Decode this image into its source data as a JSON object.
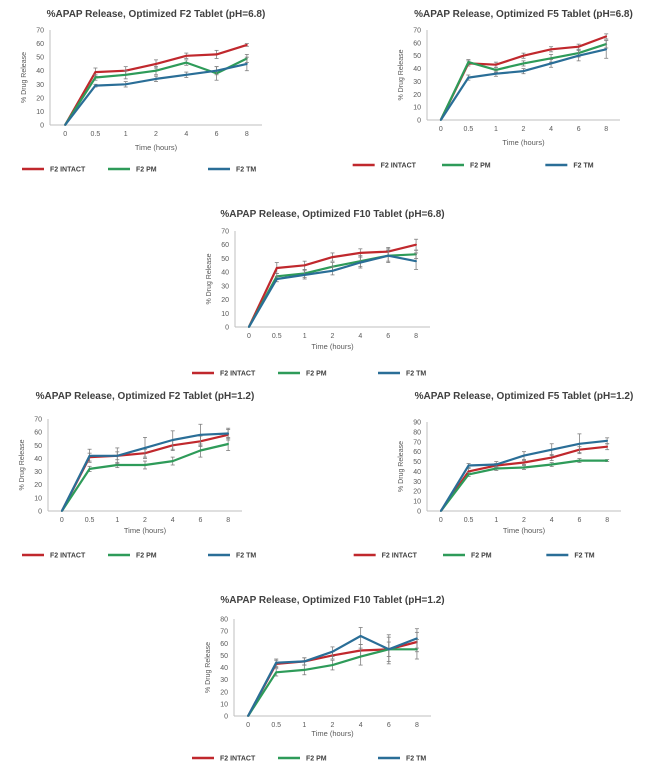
{
  "colors": {
    "intact": "#c0282d",
    "pm": "#2e9b59",
    "tm": "#2a6e97"
  },
  "chart_data": [
    {
      "type": "line",
      "title": "%APAP Release, Optimized F2 Tablet (pH=6.8)",
      "xlabel": "Time (hours)",
      "ylabel": "% Drug Release",
      "x": [
        "0",
        "0.5",
        "1",
        "2",
        "4",
        "6",
        "8"
      ],
      "ylim": [
        0,
        70
      ],
      "ystep": 10,
      "grid": false,
      "legend": "bottom",
      "series": [
        {
          "name": "F2 INTACT",
          "values": [
            0,
            39,
            40,
            45,
            51,
            52,
            59
          ],
          "err": [
            0,
            3,
            3,
            3,
            2,
            3,
            1
          ]
        },
        {
          "name": "F2 PM",
          "values": [
            0,
            35,
            37,
            40,
            46,
            38,
            49
          ],
          "err": [
            0,
            2,
            3,
            3,
            2,
            5,
            3
          ]
        },
        {
          "name": "F2 TM",
          "values": [
            0,
            29,
            30,
            34,
            37,
            40,
            45
          ],
          "err": [
            0,
            1,
            2,
            2,
            2,
            3,
            5
          ]
        }
      ]
    },
    {
      "type": "line",
      "title": "%APAP Release, Optimized F5 Tablet (pH=6.8)",
      "xlabel": "Time (hours)",
      "ylabel": "% Drug Release",
      "x": [
        "0",
        "0.5",
        "1",
        "2",
        "4",
        "6",
        "8"
      ],
      "ylim": [
        0,
        70
      ],
      "ystep": 10,
      "grid": false,
      "legend": "bottom",
      "series": [
        {
          "name": "F2 INTACT",
          "values": [
            0,
            44,
            43,
            50,
            55,
            57,
            65
          ],
          "err": [
            0,
            2,
            2,
            2,
            2,
            2,
            2
          ]
        },
        {
          "name": "F2 PM",
          "values": [
            0,
            45,
            39,
            44,
            48,
            52,
            59
          ],
          "err": [
            0,
            2,
            2,
            2,
            3,
            3,
            3
          ]
        },
        {
          "name": "F2 TM",
          "values": [
            0,
            33,
            36,
            38,
            44,
            50,
            55
          ],
          "err": [
            0,
            2,
            2,
            2,
            3,
            4,
            7
          ]
        }
      ]
    },
    {
      "type": "line",
      "title": "%APAP Release, Optimized F10 Tablet (pH=6.8)",
      "xlabel": "Time (hours)",
      "ylabel": "% Drug Release",
      "x": [
        "0",
        "0.5",
        "1",
        "2",
        "4",
        "6",
        "8"
      ],
      "ylim": [
        0,
        70
      ],
      "ystep": 10,
      "grid": false,
      "legend": "bottom",
      "series": [
        {
          "name": "F2 INTACT",
          "values": [
            0,
            43,
            45,
            51,
            54,
            55,
            60
          ],
          "err": [
            0,
            4,
            3,
            3,
            3,
            3,
            4
          ]
        },
        {
          "name": "F2 PM",
          "values": [
            0,
            37,
            39,
            44,
            48,
            52,
            53
          ],
          "err": [
            0,
            2,
            3,
            3,
            4,
            4,
            3
          ]
        },
        {
          "name": "F2 TM",
          "values": [
            0,
            35,
            38,
            41,
            47,
            52,
            48
          ],
          "err": [
            0,
            2,
            3,
            3,
            4,
            5,
            6
          ]
        }
      ]
    },
    {
      "type": "line",
      "title": "%APAP Release, Optimized F2 Tablet (pH=1.2)",
      "xlabel": "Time (hours)",
      "ylabel": "% Drug Release",
      "x": [
        "0",
        "0.5",
        "1",
        "2",
        "4",
        "6",
        "8"
      ],
      "ylim": [
        0,
        70
      ],
      "ystep": 10,
      "grid": false,
      "legend": "bottom",
      "series": [
        {
          "name": "F2 INTACT",
          "values": [
            0,
            41,
            42,
            44,
            50,
            53,
            58
          ],
          "err": [
            0,
            3,
            3,
            3,
            4,
            4,
            4
          ]
        },
        {
          "name": "F2 PM",
          "values": [
            0,
            32,
            35,
            35,
            38,
            46,
            51
          ],
          "err": [
            0,
            2,
            2,
            3,
            3,
            5,
            5
          ]
        },
        {
          "name": "F2 TM",
          "values": [
            0,
            42,
            42,
            48,
            54,
            58,
            59
          ],
          "err": [
            0,
            5,
            6,
            8,
            7,
            8,
            4
          ]
        }
      ]
    },
    {
      "type": "line",
      "title": "%APAP Release, Optimized F5 Tablet (pH=1.2)",
      "xlabel": "Time (hours)",
      "ylabel": "% Drug Release",
      "x": [
        "0",
        "0.5",
        "1",
        "2",
        "4",
        "6",
        "8"
      ],
      "ylim": [
        0,
        90
      ],
      "ystep": 10,
      "grid": false,
      "legend": "bottom",
      "series": [
        {
          "name": "F2 INTACT",
          "values": [
            0,
            40,
            46,
            49,
            54,
            62,
            65
          ],
          "err": [
            0,
            3,
            2,
            2,
            3,
            3,
            3
          ]
        },
        {
          "name": "F2 PM",
          "values": [
            0,
            37,
            43,
            44,
            47,
            51,
            51
          ],
          "err": [
            0,
            2,
            2,
            2,
            2,
            2,
            1
          ]
        },
        {
          "name": "F2 TM",
          "values": [
            0,
            46,
            47,
            56,
            62,
            68,
            71
          ],
          "err": [
            0,
            2,
            3,
            4,
            6,
            10,
            3
          ]
        }
      ]
    },
    {
      "type": "line",
      "title": "%APAP Release, Optimized F10 Tablet (pH=1.2)",
      "xlabel": "Time (hours)",
      "ylabel": "% Drug Release",
      "x": [
        "0",
        "0.5",
        "1",
        "2",
        "4",
        "6",
        "8"
      ],
      "ylim": [
        0,
        80
      ],
      "ystep": 10,
      "grid": false,
      "legend": "bottom",
      "series": [
        {
          "name": "F2 INTACT",
          "values": [
            0,
            43,
            45,
            50,
            54,
            55,
            61
          ],
          "err": [
            0,
            3,
            3,
            3,
            5,
            6,
            8
          ]
        },
        {
          "name": "F2 PM",
          "values": [
            0,
            36,
            38,
            42,
            49,
            55,
            55
          ],
          "err": [
            0,
            3,
            4,
            4,
            7,
            10,
            8
          ]
        },
        {
          "name": "F2 TM",
          "values": [
            0,
            44,
            45,
            53,
            66,
            55,
            64
          ],
          "err": [
            0,
            3,
            3,
            4,
            7,
            12,
            8
          ]
        }
      ]
    }
  ]
}
